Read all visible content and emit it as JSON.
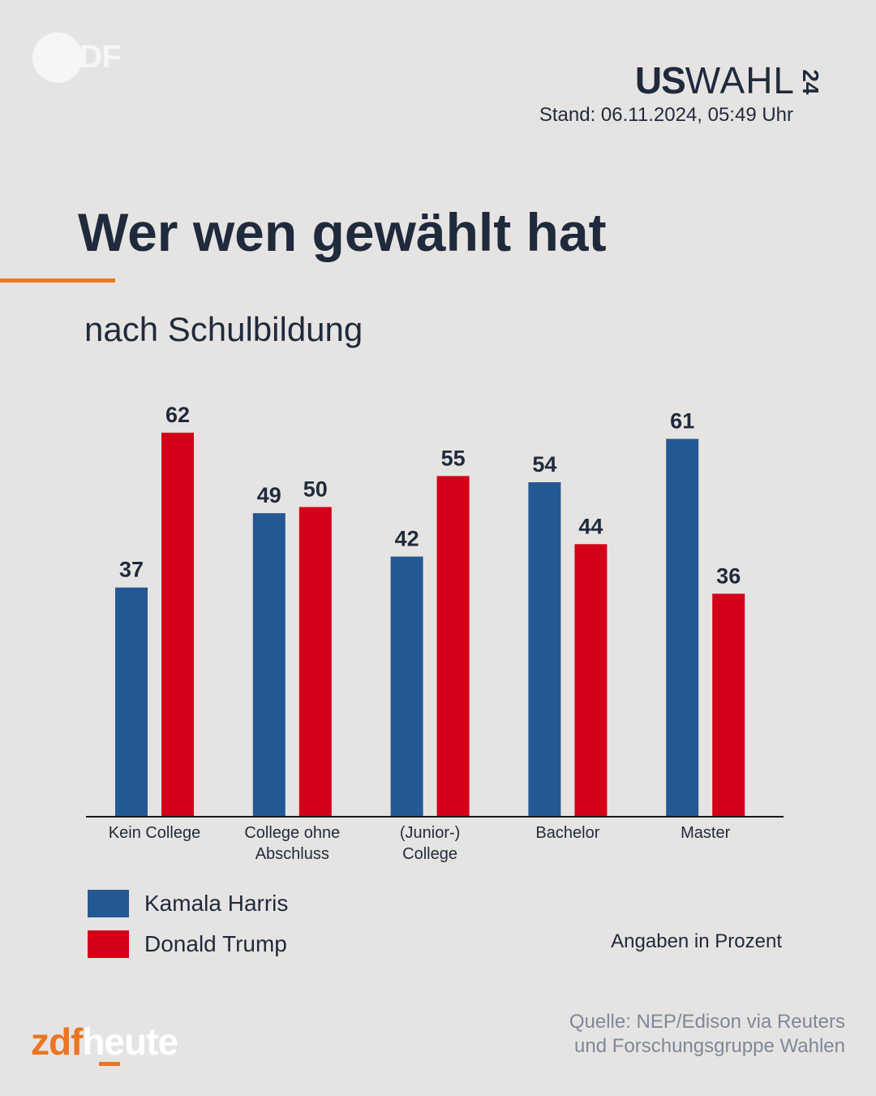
{
  "branding": {
    "zdf_logo_text": "ZDF",
    "uswahl_us": "US",
    "uswahl_wahl": "WAHL",
    "uswahl_year": "24",
    "heute_zdf": "zdf",
    "heute_heute": "heute"
  },
  "stand": "Stand: 06.11.2024, 05:49 Uhr",
  "title": "Wer wen gewählt hat",
  "subtitle": "nach Schulbildung",
  "unit_note": "Angaben in Prozent",
  "source_line1": "Quelle: NEP/Edison via Reuters",
  "source_line2": "und Forschungsgruppe Wahlen",
  "legend": [
    {
      "label": "Kamala Harris",
      "color": "#235893"
    },
    {
      "label": "Donald Trump",
      "color": "#d40019"
    }
  ],
  "colors": {
    "accent": "#ea7624",
    "text": "#1f2a3c",
    "harris": "#235893",
    "trump": "#d40019"
  },
  "chart_data": {
    "type": "bar",
    "title": "Wer wen gewählt hat",
    "subtitle": "nach Schulbildung",
    "categories": [
      [
        "Kein College"
      ],
      [
        "College ohne",
        "Abschluss"
      ],
      [
        "(Junior-)",
        "College"
      ],
      [
        "Bachelor"
      ],
      [
        "Master"
      ]
    ],
    "series": [
      {
        "name": "Kamala Harris",
        "color": "#235893",
        "values": [
          37,
          49,
          42,
          54,
          61
        ]
      },
      {
        "name": "Donald Trump",
        "color": "#d40019",
        "values": [
          62,
          50,
          55,
          44,
          36
        ]
      }
    ],
    "ylim": [
      0,
      62
    ],
    "grid": false,
    "legend_position": "bottom-left"
  }
}
